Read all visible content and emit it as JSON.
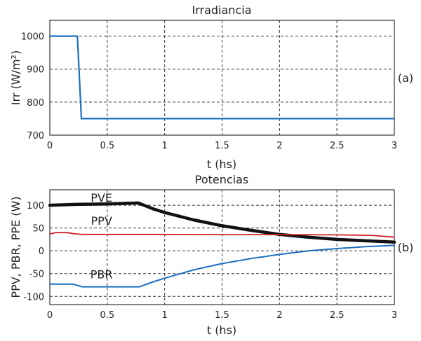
{
  "chart_data": [
    {
      "type": "line",
      "title": "Irradiancia",
      "xlabel": "t (hs)",
      "ylabel": "Irr (W/m²)",
      "panel_label": "(a)",
      "xlim": [
        0,
        3
      ],
      "ylim": [
        700,
        1048
      ],
      "grid": true,
      "xticks": [
        "0",
        "0.5",
        "1",
        "1.5",
        "2",
        "2.5",
        "3"
      ],
      "xtick_values": [
        0,
        0.5,
        1,
        1.5,
        2,
        2.5,
        3
      ],
      "yticks": [
        "700",
        "800",
        "900",
        "1000"
      ],
      "ytick_values": [
        700,
        800,
        900,
        1000
      ],
      "series": [
        {
          "name": "Irr",
          "color": "#1a6fbf",
          "x": [
            0,
            0.24,
            0.275,
            3
          ],
          "y": [
            1000,
            1000,
            750,
            750
          ]
        }
      ]
    },
    {
      "type": "line",
      "title": "Potencias",
      "xlabel": "t (hs)",
      "ylabel": "PPV, PBR, PPE (W)",
      "panel_label": "(b)",
      "xlim": [
        0,
        3
      ],
      "ylim": [
        -118,
        134
      ],
      "grid": true,
      "xticks": [
        "0",
        "0.5",
        "1",
        "1.5",
        "2",
        "2.5",
        "3"
      ],
      "xtick_values": [
        0,
        0.5,
        1,
        1.5,
        2,
        2.5,
        3
      ],
      "yticks": [
        "-100",
        "-50",
        "0",
        "50",
        "100"
      ],
      "ytick_values": [
        -100,
        -50,
        0,
        50,
        100
      ],
      "annotations": [
        {
          "text": "PVE",
          "x": 0.45,
          "y": 108
        },
        {
          "text": "PPV",
          "x": 0.45,
          "y": 57
        },
        {
          "text": "PBR",
          "x": 0.45,
          "y": -60
        }
      ],
      "series": [
        {
          "name": "PVE",
          "color": "#111111",
          "x": [
            0,
            0.25,
            0.5,
            0.77,
            0.9,
            1.0,
            1.25,
            1.5,
            1.75,
            2.0,
            2.25,
            2.5,
            2.75,
            3.0
          ],
          "y": [
            100,
            102,
            103,
            105,
            92,
            84,
            68,
            55,
            45,
            36,
            30,
            25,
            22,
            19
          ]
        },
        {
          "name": "PPV",
          "color": "#d0202a",
          "x": [
            0,
            0.05,
            0.15,
            0.2,
            0.28,
            0.5,
            1.0,
            1.5,
            2.0,
            2.5,
            2.8,
            3.0
          ],
          "y": [
            37,
            40,
            40,
            38,
            36,
            36,
            36,
            35.5,
            35.5,
            35,
            34,
            30
          ]
        },
        {
          "name": "PBR",
          "color": "#1a6fbf",
          "x": [
            0,
            0.2,
            0.28,
            0.5,
            0.78,
            0.9,
            1.0,
            1.25,
            1.5,
            1.75,
            2.0,
            2.25,
            2.5,
            2.75,
            3.0
          ],
          "y": [
            -73,
            -73,
            -79,
            -79,
            -79,
            -68,
            -60,
            -42,
            -28,
            -17,
            -8,
            0,
            5,
            9,
            12
          ]
        }
      ]
    }
  ]
}
